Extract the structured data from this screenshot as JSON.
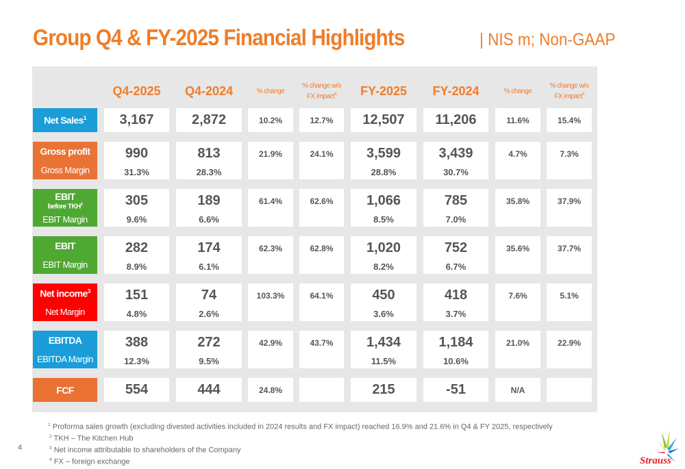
{
  "title": "Group Q4 & FY-2025 Financial Highlights",
  "subtitle": "| NIS m; Non-GAAP",
  "columns": [
    {
      "label": "Q4-2025",
      "type": "big"
    },
    {
      "label": "Q4-2024",
      "type": "big"
    },
    {
      "label": "% change",
      "type": "small"
    },
    {
      "label": "% change w/o FX impact",
      "sup": "4",
      "type": "small"
    },
    {
      "label": "FY-2025",
      "type": "big"
    },
    {
      "label": "FY-2024",
      "type": "big"
    },
    {
      "label": "% change",
      "type": "small"
    },
    {
      "label": "% change w/o FX impact",
      "sup": "4",
      "type": "small"
    }
  ],
  "rows": [
    {
      "label": "Net Sales",
      "sup": "1",
      "sublabel": "",
      "color": "#1a9dd9",
      "values": [
        "3,167",
        "2,872",
        "10.2%",
        "12.7%",
        "12,507",
        "11,206",
        "11.6%",
        "15.4%"
      ],
      "margins": [
        "",
        "",
        "",
        "",
        "",
        "",
        "",
        ""
      ]
    },
    {
      "label": "Gross profit",
      "sup": "",
      "sublabel": "Gross Margin",
      "color": "#ea7234",
      "values": [
        "990",
        "813",
        "21.9%",
        "24.1%",
        "3,599",
        "3,439",
        "4.7%",
        "7.3%"
      ],
      "margins": [
        "31.3%",
        "28.3%",
        "",
        "",
        "28.8%",
        "30.7%",
        "",
        ""
      ]
    },
    {
      "label": "EBIT",
      "sup": "",
      "midlabel": "before TKH",
      "midsup": "2",
      "sublabel": "EBIT Margin",
      "color": "#4fa832",
      "values": [
        "305",
        "189",
        "61.4%",
        "62.6%",
        "1,066",
        "785",
        "35.8%",
        "37.9%"
      ],
      "margins": [
        "9.6%",
        "6.6%",
        "",
        "",
        "8.5%",
        "7.0%",
        "",
        ""
      ]
    },
    {
      "label": "EBIT",
      "sup": "",
      "sublabel": "EBIT Margin",
      "color": "#4fa832",
      "values": [
        "282",
        "174",
        "62.3%",
        "62.8%",
        "1,020",
        "752",
        "35.6%",
        "37.7%"
      ],
      "margins": [
        "8.9%",
        "6.1%",
        "",
        "",
        "8.2%",
        "6.7%",
        "",
        ""
      ]
    },
    {
      "label": "Net income",
      "sup": "3",
      "sublabel": "Net Margin",
      "color": "#ff0000",
      "values": [
        "151",
        "74",
        "103.3%",
        "64.1%",
        "450",
        "418",
        "7.6%",
        "5.1%"
      ],
      "margins": [
        "4.8%",
        "2.6%",
        "",
        "",
        "3.6%",
        "3.7%",
        "",
        ""
      ]
    },
    {
      "label": "EBITDA",
      "sup": "",
      "sublabel": "EBITDA Margin",
      "color": "#1a9dd9",
      "values": [
        "388",
        "272",
        "42.9%",
        "43.7%",
        "1,434",
        "1,184",
        "21.0%",
        "22.9%"
      ],
      "margins": [
        "12.3%",
        "9.5%",
        "",
        "",
        "11.5%",
        "10.6%",
        "",
        ""
      ]
    },
    {
      "label": "FCF",
      "sup": "",
      "sublabel": "",
      "color": "#ea7234",
      "values": [
        "554",
        "444",
        "24.8%",
        "",
        "215",
        "-51",
        "N/A",
        ""
      ],
      "margins": [
        "",
        "",
        "",
        "",
        "",
        "",
        "",
        ""
      ]
    }
  ],
  "footnotes": [
    {
      "n": "1",
      "text": "Proforma sales growth (excluding divested activities included in 2024 results and FX impact) reached 16.9% and 21.6% in Q4 & FY 2025, respectively"
    },
    {
      "n": "2",
      "text": "TKH – The Kitchen Hub"
    },
    {
      "n": "3",
      "text": "Net income attributable to shareholders of the Company"
    },
    {
      "n": "4",
      "text": "FX – foreign exchange"
    }
  ],
  "page_number": "4",
  "logo_text": "Strauss"
}
